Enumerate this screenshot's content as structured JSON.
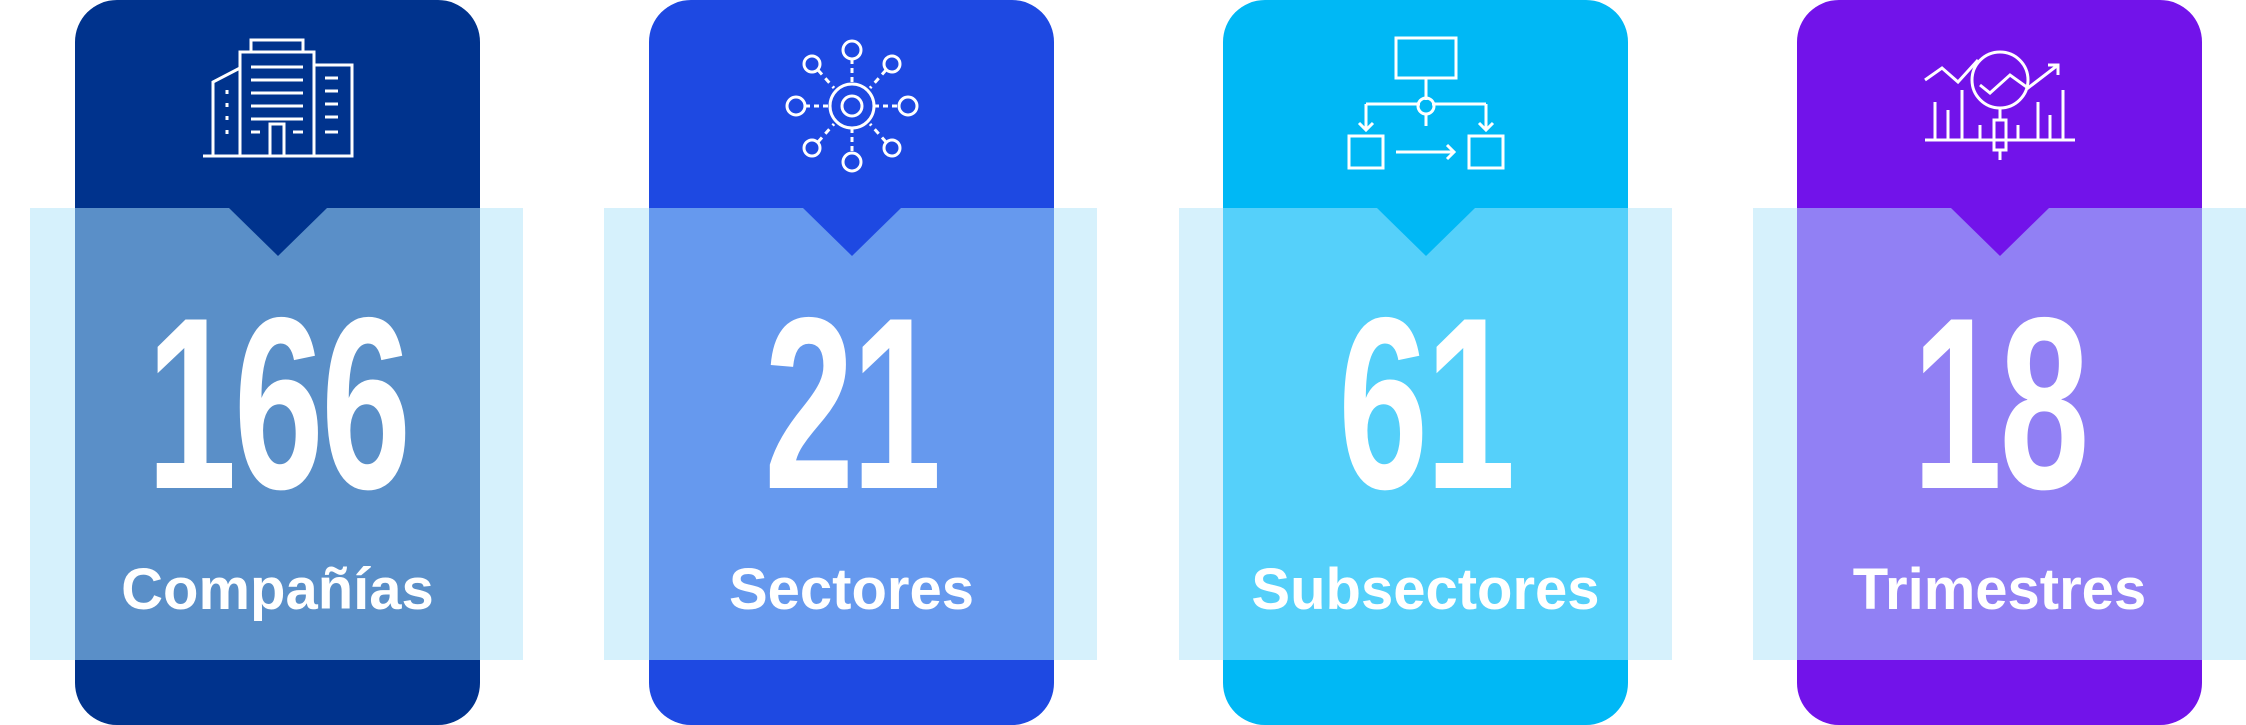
{
  "stats": [
    {
      "value": "166",
      "label": "Compañías",
      "icon": "office-buildings-icon",
      "color": "#00338D",
      "band_color": "#5A8FC8"
    },
    {
      "value": "21",
      "label": "Sectores",
      "icon": "gear-network-icon",
      "color": "#1E49E2",
      "band_color": "#6699EE"
    },
    {
      "value": "61",
      "label": "Subsectores",
      "icon": "hierarchy-flowchart-icon",
      "color": "#00B8F5",
      "band_color": "#55D0FA"
    },
    {
      "value": "18",
      "label": "Trimestres",
      "icon": "trend-analysis-icon",
      "color": "#7213EA",
      "band_color": "#9180F4"
    }
  ],
  "band_outer_color": "#D6F1FC"
}
